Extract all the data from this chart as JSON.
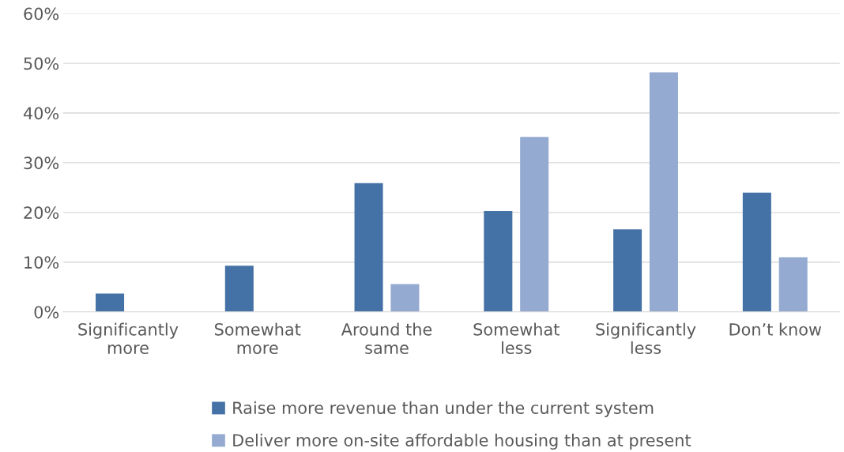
{
  "chart_data": {
    "type": "bar",
    "categories": [
      "Significantly\nmore",
      "Somewhat\nmore",
      "Around the\nsame",
      "Somewhat\nless",
      "Significantly\nless",
      "Don’t know"
    ],
    "series": [
      {
        "name": "Raise more revenue than under the current system",
        "color": "#4472a6",
        "values": [
          3.7,
          9.3,
          25.9,
          20.3,
          16.6,
          24.0
        ]
      },
      {
        "name": "Deliver more on-site affordable housing than at present",
        "color": "#95aad0",
        "values": [
          0,
          0,
          5.6,
          35.2,
          48.2,
          11.0
        ]
      }
    ],
    "ylim": [
      0,
      60
    ],
    "yticks": [
      {
        "value": 0,
        "label": "0%"
      },
      {
        "value": 10,
        "label": "10%"
      },
      {
        "value": 20,
        "label": "20%"
      },
      {
        "value": 30,
        "label": "30%"
      },
      {
        "value": 40,
        "label": "40%"
      },
      {
        "value": 50,
        "label": "50%"
      },
      {
        "value": 60,
        "label": "60%"
      }
    ],
    "grid": "y",
    "legend": "bottom"
  }
}
